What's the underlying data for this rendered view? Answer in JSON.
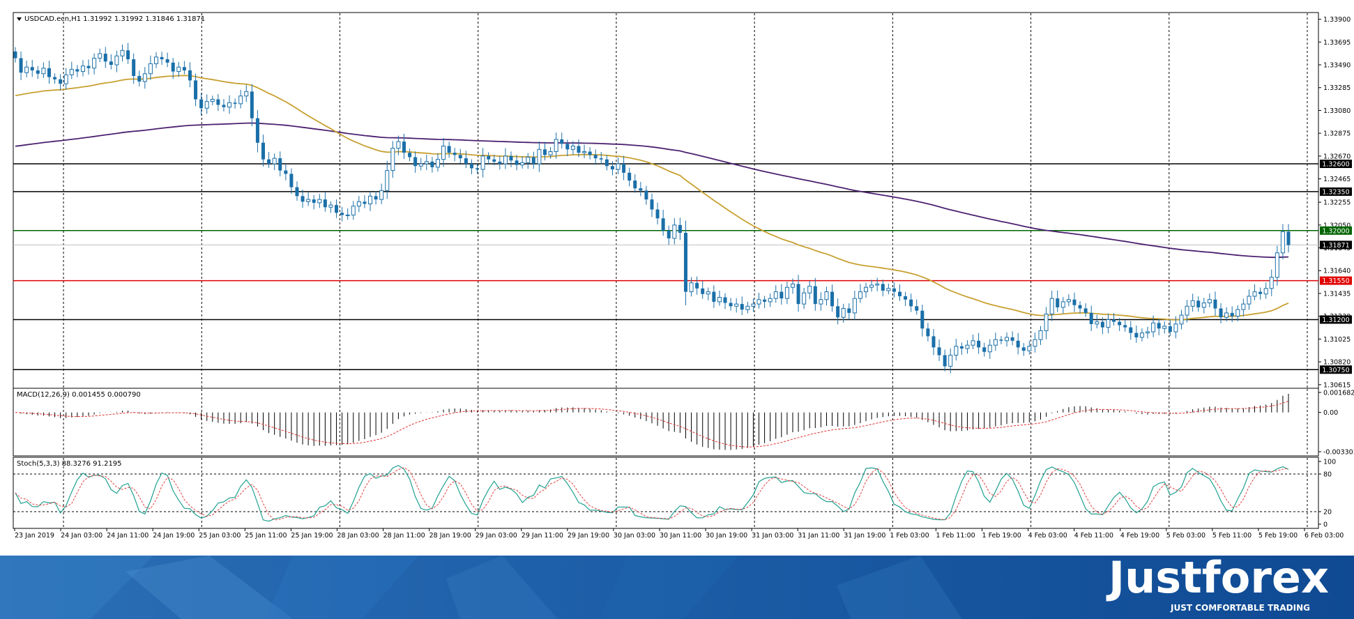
{
  "chart_data": [
    {
      "type": "candlestick",
      "title": "USDCAD.ecn,H1 1.31992 1.31992 1.31846 1.31871",
      "y_ticks": [
        "1.33900",
        "1.33695",
        "1.33490",
        "1.33285",
        "1.33080",
        "1.32875",
        "1.32670",
        "1.32465",
        "1.32255",
        "1.32050",
        "1.31845",
        "1.31640",
        "1.31435",
        "1.31230",
        "1.31025",
        "1.30820",
        "1.30615"
      ],
      "ylim": [
        1.3057,
        1.3396
      ],
      "x_labels": [
        "23 Jan 2019",
        "24 Jan 03:00",
        "24 Jan 11:00",
        "24 Jan 19:00",
        "25 Jan 03:00",
        "25 Jan 11:00",
        "25 Jan 19:00",
        "28 Jan 03:00",
        "28 Jan 11:00",
        "28 Jan 19:00",
        "29 Jan 03:00",
        "29 Jan 11:00",
        "29 Jan 19:00",
        "30 Jan 03:00",
        "30 Jan 11:00",
        "30 Jan 19:00",
        "31 Jan 03:00",
        "31 Jan 11:00",
        "31 Jan 19:00",
        "1 Feb 03:00",
        "1 Feb 11:00",
        "1 Feb 19:00",
        "4 Feb 03:00",
        "4 Feb 11:00",
        "4 Feb 19:00",
        "5 Feb 03:00",
        "5 Feb 11:00",
        "5 Feb 19:00",
        "6 Feb 03:00"
      ],
      "levels": [
        {
          "value": 1.326,
          "label": "1.32600",
          "color": "#000000"
        },
        {
          "value": 1.3235,
          "label": "1.32350",
          "color": "#000000"
        },
        {
          "value": 1.32,
          "label": "1.32000",
          "color": "#006400"
        },
        {
          "value": 1.31871,
          "label": "1.31871",
          "color": "#c0c0c0"
        },
        {
          "value": 1.3155,
          "label": "1.31550",
          "color": "#e00000"
        },
        {
          "value": 1.312,
          "label": "1.31200",
          "color": "#000000"
        },
        {
          "value": 1.3075,
          "label": "1.30750",
          "color": "#000000"
        }
      ],
      "ma_fast_color": "#c8a030",
      "ma_slow_color": "#4b2070",
      "candle_color": "#1a6fa8",
      "closes": [
        1.3355,
        1.3342,
        1.3347,
        1.3344,
        1.3341,
        1.3346,
        1.3338,
        1.3336,
        1.3332,
        1.334,
        1.3345,
        1.3343,
        1.3348,
        1.3346,
        1.3355,
        1.3359,
        1.3352,
        1.3349,
        1.3357,
        1.3362,
        1.3354,
        1.3339,
        1.3334,
        1.3341,
        1.335,
        1.3356,
        1.3354,
        1.3351,
        1.3343,
        1.3347,
        1.3344,
        1.3335,
        1.3318,
        1.331,
        1.3316,
        1.3318,
        1.3313,
        1.3311,
        1.3315,
        1.3314,
        1.3321,
        1.3325,
        1.3301,
        1.3279,
        1.3264,
        1.326,
        1.3265,
        1.3254,
        1.3251,
        1.3239,
        1.3231,
        1.3226,
        1.3228,
        1.3225,
        1.3228,
        1.3221,
        1.3223,
        1.3216,
        1.3214,
        1.3214,
        1.3222,
        1.3226,
        1.3224,
        1.3231,
        1.3228,
        1.3236,
        1.3254,
        1.3274,
        1.328,
        1.327,
        1.3266,
        1.3258,
        1.326,
        1.3262,
        1.3257,
        1.3264,
        1.3276,
        1.327,
        1.3268,
        1.3265,
        1.326,
        1.3256,
        1.3255,
        1.3267,
        1.3264,
        1.3262,
        1.326,
        1.3267,
        1.3263,
        1.3259,
        1.3261,
        1.3266,
        1.326,
        1.3273,
        1.3268,
        1.3271,
        1.3282,
        1.3278,
        1.3273,
        1.3276,
        1.327,
        1.3271,
        1.3268,
        1.3265,
        1.3264,
        1.3258,
        1.3255,
        1.326,
        1.3252,
        1.3245,
        1.3238,
        1.3236,
        1.3228,
        1.3219,
        1.3211,
        1.32,
        1.3193,
        1.3205,
        1.3198,
        1.3145,
        1.3153,
        1.3148,
        1.3143,
        1.3145,
        1.3136,
        1.314,
        1.3135,
        1.3132,
        1.3134,
        1.3129,
        1.3132,
        1.3134,
        1.3138,
        1.3136,
        1.3139,
        1.3145,
        1.3139,
        1.3149,
        1.3152,
        1.3134,
        1.3144,
        1.315,
        1.3134,
        1.3138,
        1.3145,
        1.3132,
        1.3122,
        1.313,
        1.3126,
        1.3139,
        1.3145,
        1.3149,
        1.3151,
        1.3152,
        1.3146,
        1.3148,
        1.3145,
        1.3141,
        1.3138,
        1.3132,
        1.3128,
        1.3112,
        1.3105,
        1.3095,
        1.3088,
        1.3078,
        1.3088,
        1.3096,
        1.3094,
        1.3097,
        1.3101,
        1.3095,
        1.3091,
        1.3097,
        1.3102,
        1.3101,
        1.3104,
        1.3101,
        1.3095,
        1.3092,
        1.3096,
        1.3102,
        1.311,
        1.3125,
        1.3139,
        1.3131,
        1.3136,
        1.3138,
        1.3133,
        1.313,
        1.3126,
        1.3116,
        1.3118,
        1.3113,
        1.312,
        1.3118,
        1.3115,
        1.3113,
        1.3108,
        1.3104,
        1.3108,
        1.3109,
        1.3117,
        1.3112,
        1.3114,
        1.3109,
        1.3116,
        1.3124,
        1.3132,
        1.3137,
        1.3131,
        1.3135,
        1.3138,
        1.313,
        1.3122,
        1.3126,
        1.3123,
        1.3129,
        1.3134,
        1.3141,
        1.3145,
        1.3143,
        1.3148,
        1.3158,
        1.318,
        1.3199,
        1.3187
      ],
      "ma_fast_start": 1.332,
      "ma_slow_start": 1.3275
    },
    {
      "type": "histogram",
      "title": "MACD(12,26,9) 0.001455 0.000790",
      "y_ticks": [
        "0.001682",
        "0.00",
        "-0.003303"
      ],
      "ylim": [
        -0.003303,
        0.001682
      ]
    },
    {
      "type": "line",
      "title": "Stoch(5,3,3) 88.3276 91.2195",
      "y_ticks": [
        "100",
        "80",
        "20",
        "0"
      ],
      "ylim": [
        0,
        100
      ],
      "k_color": "#20a090",
      "d_color": "#e04040"
    }
  ],
  "banner": {
    "brand": "Justforex",
    "tagline": "JUST COMFORTABLE TRADING"
  }
}
